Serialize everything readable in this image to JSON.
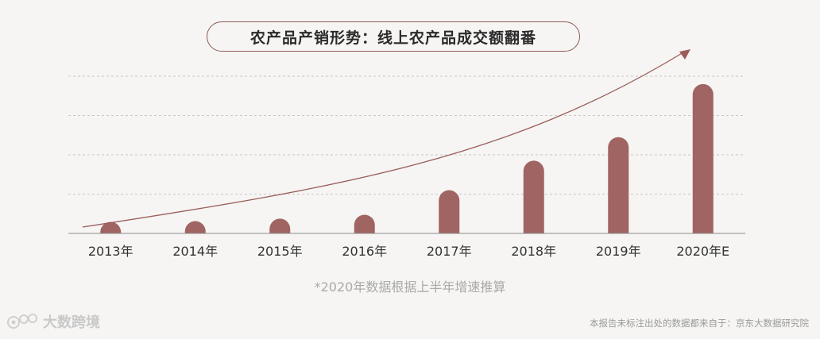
{
  "title": "农产品产销形势：线上农产品成交额翻番",
  "footnote": "*2020年数据根据上半年增速推算",
  "source": "本报告未标注出处的数据都来自于：京东大数据研究院",
  "logo_text": "大数跨境",
  "colors": {
    "bar": "#a06462",
    "arrow": "#9a5d5b",
    "grid": "#c8c8c8",
    "axis": "#8c8c8c"
  },
  "chart_data": {
    "type": "bar",
    "title": "农产品产销形势：线上农产品成交额翻番",
    "categories": [
      "2013年",
      "2014年",
      "2015年",
      "2016年",
      "2017年",
      "2018年",
      "2019年",
      "2020年E"
    ],
    "values": [
      1,
      2,
      4.5,
      8.5,
      22,
      37,
      49,
      76
    ],
    "ylim": [
      0,
      80
    ],
    "y_axis_labels_shown": false,
    "grid": true,
    "legend": "none",
    "annotation": "rising trend arrow"
  }
}
